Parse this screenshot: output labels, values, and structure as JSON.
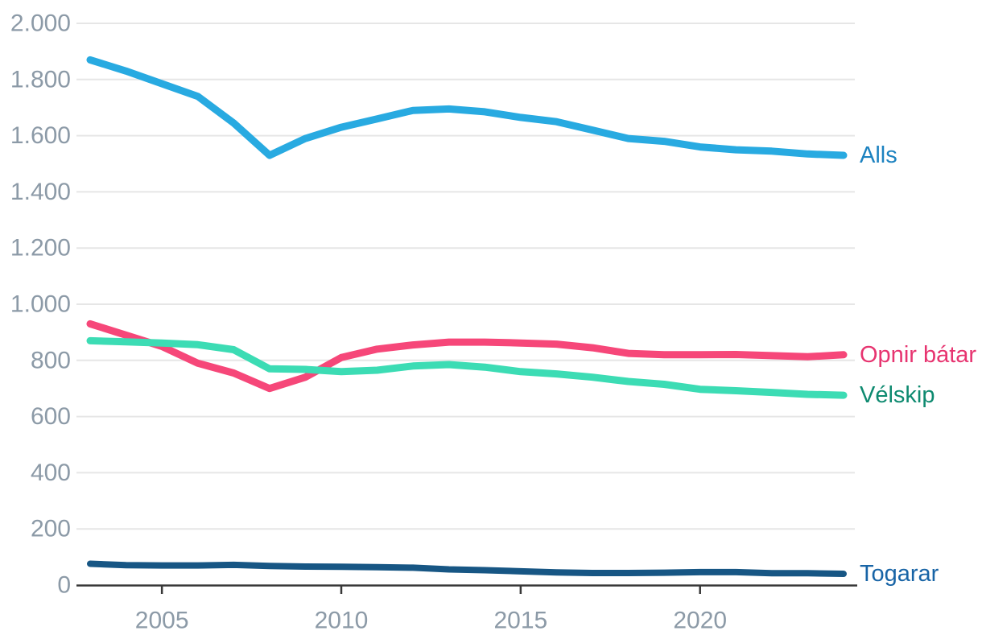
{
  "chart_data": {
    "type": "line",
    "x": [
      2003,
      2004,
      2005,
      2006,
      2007,
      2008,
      2009,
      2010,
      2011,
      2012,
      2013,
      2014,
      2015,
      2016,
      2017,
      2018,
      2019,
      2020,
      2021,
      2022,
      2023,
      2024
    ],
    "series": [
      {
        "name": "Alls",
        "color": "#28aae1",
        "label_color": "#1c82c0",
        "line_width": 9,
        "values": [
          1870,
          1830,
          1785,
          1740,
          1645,
          1530,
          1590,
          1630,
          1660,
          1690,
          1695,
          1685,
          1665,
          1650,
          1620,
          1590,
          1580,
          1560,
          1550,
          1545,
          1535,
          1530
        ]
      },
      {
        "name": "Opnir bátar",
        "color": "#f64779",
        "label_color": "#e73470",
        "line_width": 9,
        "values": [
          930,
          890,
          850,
          790,
          755,
          700,
          740,
          810,
          840,
          855,
          865,
          865,
          862,
          858,
          845,
          825,
          820,
          820,
          821,
          817,
          813,
          820
        ]
      },
      {
        "name": "Vélskip",
        "color": "#3cdcb4",
        "label_color": "#0e8a70",
        "line_width": 9,
        "values": [
          870,
          866,
          862,
          856,
          838,
          770,
          768,
          760,
          765,
          780,
          785,
          776,
          760,
          752,
          740,
          725,
          715,
          697,
          692,
          686,
          679,
          676
        ]
      },
      {
        "name": "Togarar",
        "color": "#175684",
        "label_color": "#1864a6",
        "line_width": 8,
        "values": [
          76,
          71,
          70,
          70,
          72,
          68,
          66,
          65,
          64,
          62,
          56,
          53,
          49,
          45,
          43,
          43,
          44,
          46,
          46,
          42,
          42,
          40
        ]
      }
    ],
    "xticks": [
      2005,
      2010,
      2015,
      2020
    ],
    "yticks": [
      0,
      200,
      400,
      600,
      800,
      1000,
      1200,
      1400,
      1600,
      1800,
      2000
    ],
    "ytick_labels": [
      "0",
      "200",
      "400",
      "600",
      "800",
      "1.000",
      "1.200",
      "1.400",
      "1.600",
      "1.800",
      "2.000"
    ],
    "xlim": [
      2003,
      2024
    ],
    "ylim": [
      0,
      2000
    ],
    "grid": true,
    "legend_position": "right-of-line-ends",
    "axis_label_color": "#8c9aa7",
    "grid_color": "#e6e6e6",
    "axis_line_color": "#383838"
  }
}
